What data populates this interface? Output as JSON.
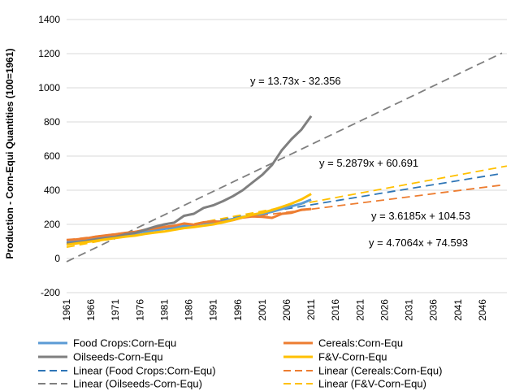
{
  "chart_data": {
    "type": "line",
    "title": "",
    "xlabel": "",
    "ylabel": "Production - Corn-Equi Quantities (100=1961)",
    "xlim": [
      1961,
      2051
    ],
    "ylim": [
      -200,
      1400
    ],
    "y_ticks": [
      -200,
      0,
      200,
      400,
      600,
      800,
      1000,
      1200,
      1400
    ],
    "x_ticks": [
      1961,
      1966,
      1971,
      1976,
      1981,
      1986,
      1991,
      1996,
      2001,
      2006,
      2011,
      2016,
      2021,
      2026,
      2031,
      2036,
      2041,
      2046
    ],
    "grid": "horizontal",
    "legend_position": "bottom",
    "series": [
      {
        "name": "Food Crops:Corn-Equ",
        "color": "#5B9BD5",
        "style": "solid",
        "x": [
          1961,
          1963,
          1965,
          1967,
          1969,
          1971,
          1973,
          1975,
          1977,
          1979,
          1981,
          1983,
          1985,
          1987,
          1989,
          1991,
          1993,
          1995,
          1997,
          1999,
          2001,
          2003,
          2005,
          2007,
          2009,
          2011
        ],
        "values": [
          100,
          104,
          110,
          118,
          126,
          132,
          140,
          148,
          158,
          166,
          174,
          180,
          190,
          197,
          206,
          212,
          220,
          232,
          244,
          252,
          262,
          274,
          290,
          306,
          322,
          345
        ]
      },
      {
        "name": "Cereals:Corn-Equ",
        "color": "#ED7D31",
        "style": "solid",
        "x": [
          1961,
          1963,
          1965,
          1967,
          1969,
          1971,
          1973,
          1975,
          1977,
          1979,
          1981,
          1983,
          1985,
          1987,
          1989,
          1991,
          1993,
          1995,
          1997,
          1999,
          2001,
          2003,
          2005,
          2007,
          2009,
          2011
        ],
        "values": [
          108,
          112,
          118,
          128,
          135,
          142,
          150,
          155,
          168,
          176,
          185,
          192,
          205,
          198,
          212,
          218,
          214,
          225,
          240,
          246,
          244,
          238,
          262,
          268,
          285,
          290
        ]
      },
      {
        "name": "Oilseeds-Corn-Equ",
        "color": "#7F7F7F",
        "style": "solid",
        "x": [
          1961,
          1963,
          1965,
          1967,
          1969,
          1971,
          1973,
          1975,
          1977,
          1979,
          1981,
          1983,
          1985,
          1987,
          1989,
          1991,
          1993,
          1995,
          1997,
          1999,
          2001,
          2003,
          2005,
          2007,
          2009,
          2011
        ],
        "values": [
          88,
          94,
          102,
          112,
          118,
          126,
          142,
          150,
          168,
          186,
          200,
          210,
          250,
          262,
          296,
          312,
          336,
          365,
          400,
          445,
          490,
          548,
          635,
          700,
          755,
          835
        ]
      },
      {
        "name": "F&V-Corn-Equ",
        "color": "#FFC000",
        "style": "solid",
        "x": [
          1961,
          1963,
          1965,
          1967,
          1969,
          1971,
          1973,
          1975,
          1977,
          1979,
          1981,
          1983,
          1985,
          1987,
          1989,
          1991,
          1993,
          1995,
          1997,
          1999,
          2001,
          2003,
          2005,
          2007,
          2009,
          2011
        ],
        "values": [
          80,
          88,
          96,
          104,
          112,
          120,
          128,
          134,
          144,
          152,
          158,
          168,
          178,
          184,
          192,
          200,
          212,
          226,
          242,
          256,
          268,
          284,
          302,
          322,
          346,
          378
        ]
      },
      {
        "name": "Linear (Food Crops:Corn-Equ)",
        "color": "#2E75B6",
        "style": "dashed",
        "trend": {
          "slope": 4.7064,
          "intercept": 74.593,
          "x_start": 1961,
          "x_end": 2050
        }
      },
      {
        "name": "Linear (Cereals:Corn-Equ)",
        "color": "#ED7D31",
        "style": "dashed",
        "trend": {
          "slope": 3.6185,
          "intercept": 104.53,
          "x_start": 1961,
          "x_end": 2050
        }
      },
      {
        "name": "Linear (Oilseeds-Corn-Equ)",
        "color": "#7F7F7F",
        "style": "dashed",
        "trend": {
          "slope": 13.73,
          "intercept": -32.356,
          "x_start": 1961,
          "x_end": 2050
        }
      },
      {
        "name": "Linear (F&V-Corn-Equ)",
        "color": "#FFC000",
        "style": "dashed",
        "trend": {
          "slope": 5.2879,
          "intercept": 60.691,
          "x_start": 1961,
          "x_end": 2051
        }
      }
    ],
    "annotations": [
      {
        "text": "y = 13.73x - 32.356"
      },
      {
        "text": "y = 5.2879x + 60.691"
      },
      {
        "text": "y = 3.6185x + 104.53"
      },
      {
        "text": "y = 4.7064x + 74.593"
      }
    ]
  }
}
